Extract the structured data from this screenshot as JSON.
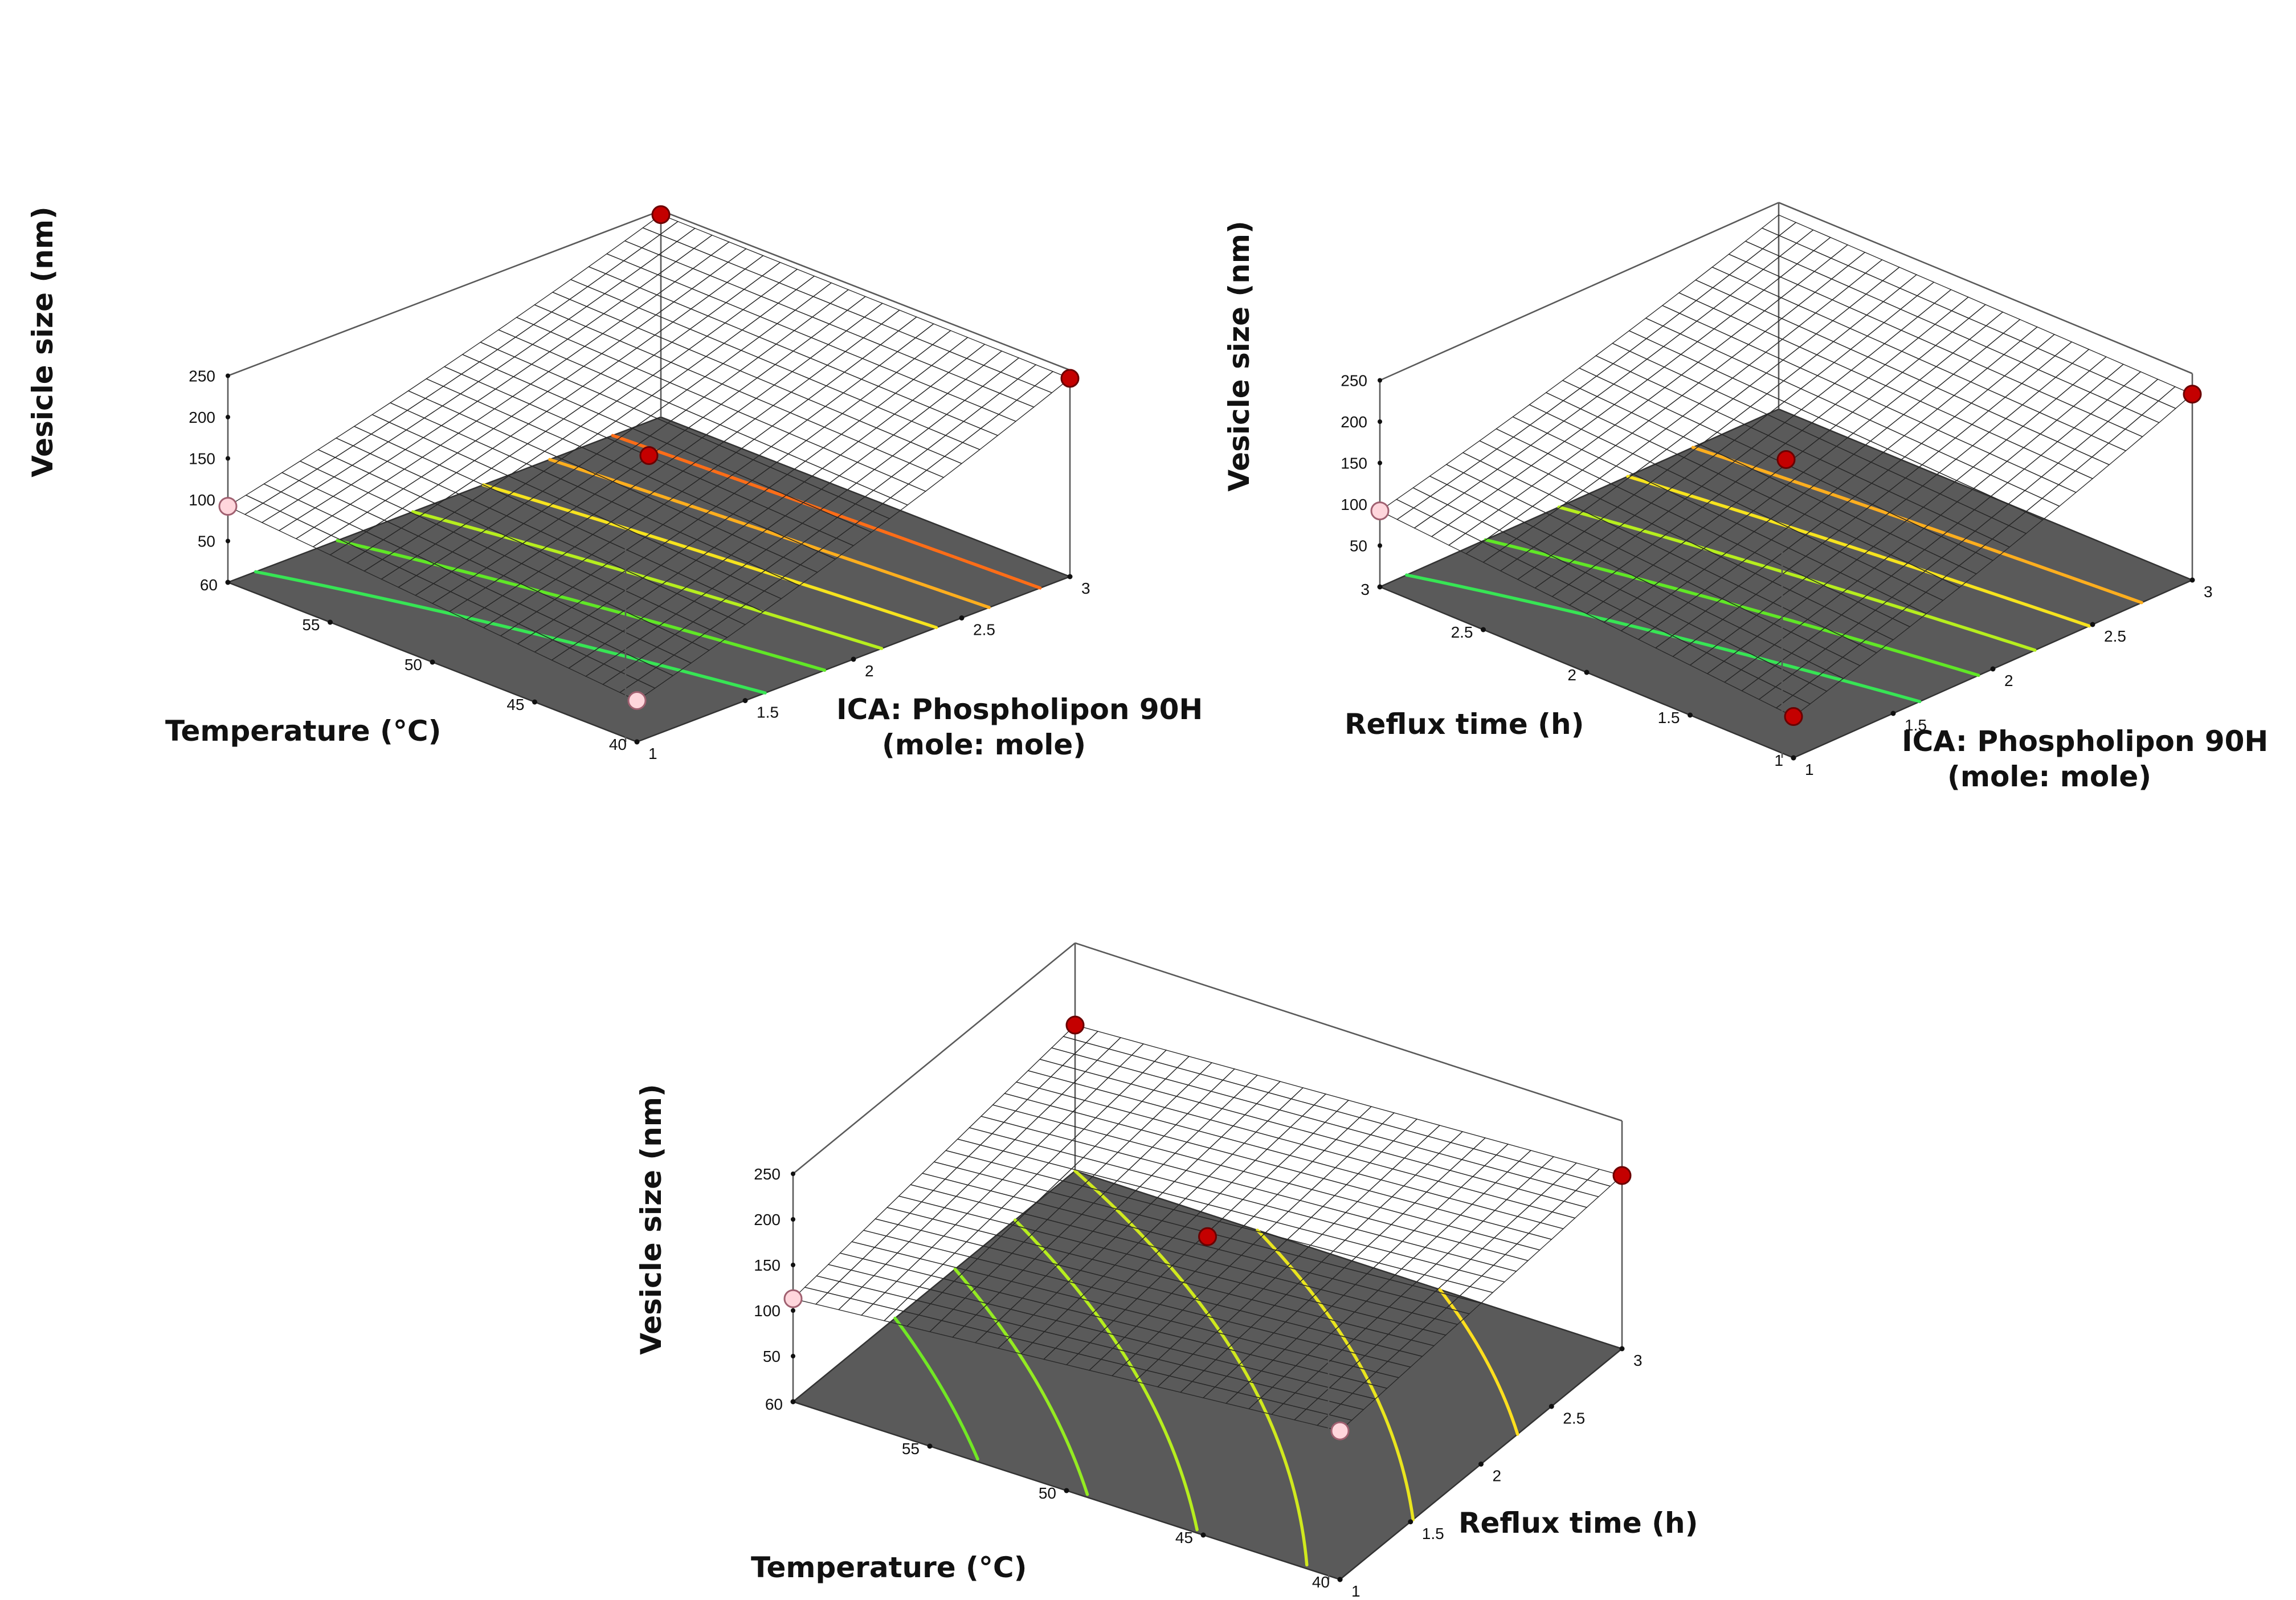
{
  "figure": {
    "panel_count": 3,
    "colormap": [
      "#1f3cff",
      "#1aa5ff",
      "#19e3ee",
      "#2be56c",
      "#4be528",
      "#b3ee1e",
      "#ffe21e",
      "#ff9a1e",
      "#ff4a12"
    ]
  },
  "chart_data": [
    {
      "type": "surface",
      "panel": "top-left",
      "zlabel": "Vesicle size (nm)",
      "xlabel": "Temperature (°C)",
      "ylabel": "ICA: Phospholipon 90H (mole: mole)",
      "xlabel_lines": [
        "Temperature (°C)"
      ],
      "ylabel_lines": [
        "ICA: Phospholipon 90H",
        "(mole: mole)"
      ],
      "zlim": [
        0,
        250
      ],
      "zticks": [
        50,
        100,
        150,
        200,
        250
      ],
      "x_range": [
        40,
        60
      ],
      "x_ticks": [
        40,
        45,
        50,
        55,
        60
      ],
      "y_range": [
        1,
        3
      ],
      "y_ticks": [
        1,
        1.5,
        2,
        2.5,
        3
      ],
      "surface_corners": {
        "x_min_y_min": 50,
        "x_max_y_min": 92,
        "x_min_y_max": 240,
        "x_max_y_max": 245
      },
      "curvature": 30,
      "contour_levels": [
        100,
        125,
        150,
        175,
        200,
        225
      ],
      "design_points": [
        {
          "x": 60,
          "y": 3,
          "z": 245,
          "marker": "above"
        },
        {
          "x": 40,
          "y": 3,
          "z": 240,
          "marker": "above"
        },
        {
          "x": 50,
          "y": 2,
          "z": 150,
          "marker": "above"
        },
        {
          "x": 60,
          "y": 1,
          "z": 92,
          "marker": "below"
        },
        {
          "x": 40,
          "y": 1,
          "z": 50,
          "marker": "below"
        }
      ]
    },
    {
      "type": "surface",
      "panel": "top-right",
      "zlabel": "Vesicle size (nm)",
      "xlabel": "Reflux time (h)",
      "ylabel": "ICA: Phospholipon 90H (mole: mole)",
      "xlabel_lines": [
        "Reflux time (h)"
      ],
      "ylabel_lines": [
        "ICA: Phospholipon 90H",
        "(mole: mole)"
      ],
      "zlim": [
        0,
        250
      ],
      "zticks": [
        50,
        100,
        150,
        200,
        250
      ],
      "x_range": [
        1,
        3
      ],
      "x_ticks": [
        1,
        1.5,
        2,
        2.5,
        3
      ],
      "y_range": [
        1,
        3
      ],
      "y_ticks": [
        1,
        1.5,
        2,
        2.5,
        3
      ],
      "surface_corners": {
        "x_min_y_min": 50,
        "x_max_y_min": 92,
        "x_min_y_max": 225,
        "x_max_y_max": 235
      },
      "curvature": 25,
      "contour_levels": [
        100,
        125,
        150,
        175,
        200
      ],
      "design_points": [
        {
          "x": 1,
          "y": 3,
          "z": 225,
          "marker": "above"
        },
        {
          "x": 2,
          "y": 2,
          "z": 150,
          "marker": "above"
        },
        {
          "x": 3,
          "y": 1,
          "z": 92,
          "marker": "below"
        },
        {
          "x": 1,
          "y": 1,
          "z": 50,
          "marker": "above"
        }
      ]
    },
    {
      "type": "surface",
      "panel": "bottom",
      "zlabel": "Vesicle size (nm)",
      "xlabel": "Temperature (°C)",
      "ylabel": "Reflux time (h)",
      "xlabel_lines": [
        "Temperature (°C)"
      ],
      "ylabel_lines": [
        "Reflux time (h)"
      ],
      "zlim": [
        0,
        250
      ],
      "zticks": [
        50,
        100,
        150,
        200,
        250
      ],
      "x_range": [
        40,
        60
      ],
      "x_ticks": [
        40,
        45,
        50,
        55,
        60
      ],
      "y_range": [
        1,
        3
      ],
      "y_ticks": [
        1,
        1.5,
        2,
        2.5,
        3
      ],
      "surface_corners": {
        "x_min_y_min": 163,
        "x_max_y_min": 113,
        "x_min_y_max": 190,
        "x_max_y_max": 160
      },
      "curvature": 0,
      "contour_levels": [
        130,
        140,
        150,
        160,
        170,
        180
      ],
      "design_points": [
        {
          "x": 40,
          "y": 3,
          "z": 190,
          "marker": "above"
        },
        {
          "x": 40,
          "y": 1,
          "z": 163,
          "marker": "below"
        },
        {
          "x": 50,
          "y": 2,
          "z": 152,
          "marker": "above"
        },
        {
          "x": 60,
          "y": 3,
          "z": 160,
          "marker": "above"
        },
        {
          "x": 60,
          "y": 1,
          "z": 113,
          "marker": "below"
        }
      ]
    }
  ]
}
